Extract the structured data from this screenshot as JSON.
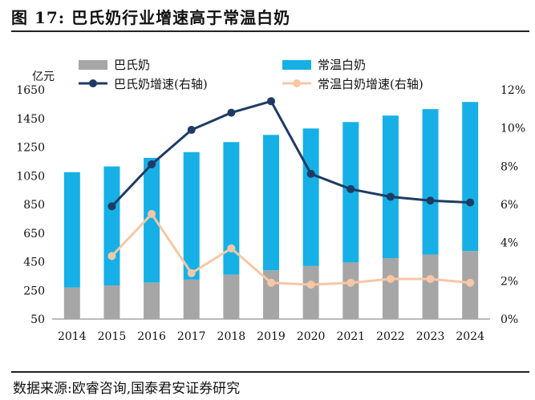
{
  "figure": {
    "label": "图 17:",
    "title": "巴氏奶行业增速高于常温白奶",
    "source": "数据来源:欧睿咨询,国泰君安证券研究"
  },
  "colors": {
    "pasteurized_bar": "#a6a6a6",
    "ambient_bar": "#16b0e6",
    "pasteurized_growth": "#1f3b64",
    "ambient_growth": "#f7c7a6"
  },
  "chart_data": {
    "type": "bar",
    "stacked": true,
    "categories": [
      "2014",
      "2015",
      "2016",
      "2017",
      "2018",
      "2019",
      "2020",
      "2021",
      "2022",
      "2023",
      "2024"
    ],
    "y_left": {
      "label": "亿元",
      "min": 50,
      "max": 1650,
      "ticks": [
        50,
        250,
        450,
        650,
        850,
        1050,
        1250,
        1450,
        1650
      ]
    },
    "y_right": {
      "min": 0,
      "max": 12,
      "ticks": [
        "0%",
        "2%",
        "4%",
        "6%",
        "8%",
        "10%",
        "12%"
      ]
    },
    "series": [
      {
        "name": "巴氏奶",
        "kind": "bar",
        "axis": "left",
        "values": [
          220,
          235,
          255,
          275,
          310,
          340,
          370,
          395,
          425,
          450,
          475
        ]
      },
      {
        "name": "常温白奶",
        "kind": "bar",
        "axis": "left",
        "values": [
          805,
          830,
          870,
          890,
          925,
          945,
          960,
          980,
          995,
          1015,
          1040
        ]
      },
      {
        "name": "巴氏奶增速(右轴)",
        "kind": "line",
        "axis": "right",
        "values": [
          null,
          5.9,
          8.1,
          9.9,
          10.8,
          11.4,
          7.6,
          6.8,
          6.4,
          6.2,
          6.1
        ]
      },
      {
        "name": "常温白奶增速(右轴)",
        "kind": "line",
        "axis": "right",
        "values": [
          null,
          3.3,
          5.5,
          2.4,
          3.7,
          1.9,
          1.8,
          1.9,
          2.1,
          2.1,
          1.9
        ]
      }
    ]
  }
}
